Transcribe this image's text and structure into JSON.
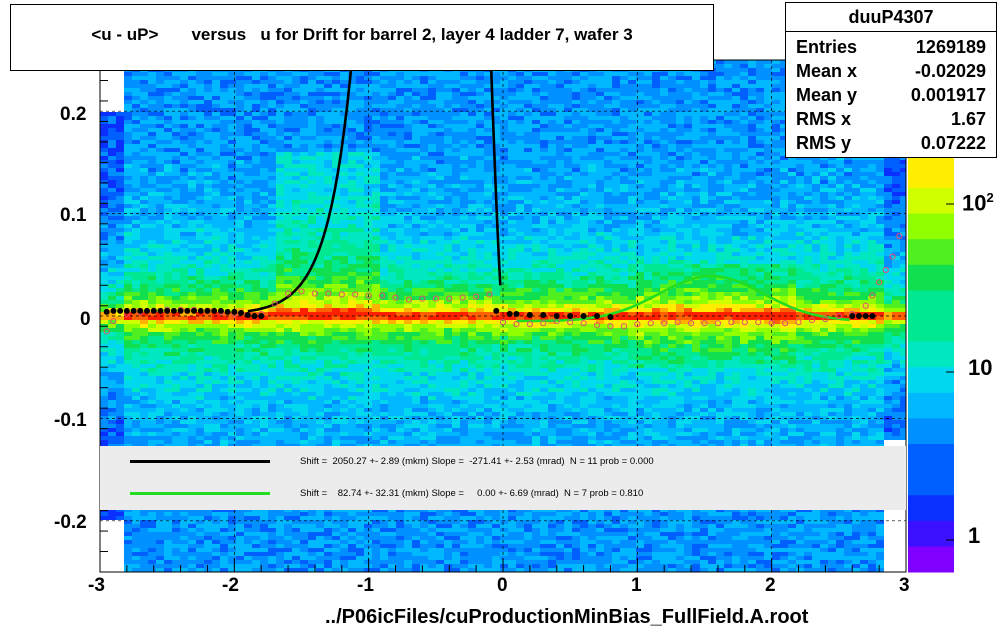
{
  "title": "<u - uP>       versus   u for Drift for barrel 2, layer 4 ladder 7, wafer 3",
  "stats": {
    "name": "duuP4307",
    "rows": [
      {
        "key": "Entries",
        "value": "1269189"
      },
      {
        "key": "Mean x",
        "value": "-0.02029"
      },
      {
        "key": "Mean y",
        "value": "0.001917"
      },
      {
        "key": "RMS x",
        "value": "1.67"
      },
      {
        "key": "RMS y",
        "value": "0.07222"
      }
    ]
  },
  "legend": [
    {
      "color": "#000000",
      "text": "Shift =  2050.27 +- 2.89 (mkm) Slope =  -271.41 +- 2.53 (mrad)  N = 11 prob = 0.000"
    },
    {
      "color": "#22dd22",
      "text": "Shift =    82.74 +- 32.31 (mkm) Slope =     0.00 +- 6.69 (mrad)  N = 7 prob = 0.810"
    }
  ],
  "x_axis_footer": "../P06icFiles/cuProductionMinBias_FullField.A.root",
  "chart_data": {
    "type": "heatmap",
    "xlim": [
      -3,
      3
    ],
    "ylim": [
      -0.25,
      0.25
    ],
    "x_ticks": [
      "-3",
      "-2",
      "-1",
      "0",
      "1",
      "2",
      "3"
    ],
    "y_ticks": [
      "0.2",
      "0.1",
      "0",
      "-0.1",
      "-0.2"
    ],
    "colorbar_ticks": [
      "1",
      "10",
      "10^2"
    ],
    "z_log": true,
    "grid": true,
    "profile_black": {
      "x": [
        -2.95,
        -2.9,
        -2.85,
        -2.8,
        -2.75,
        -2.7,
        -2.65,
        -2.6,
        -2.55,
        -2.5,
        -2.45,
        -2.4,
        -2.35,
        -2.3,
        -2.25,
        -2.2,
        -2.15,
        -2.1,
        -2.05,
        -2.0,
        -1.95,
        -1.9,
        -1.85,
        -1.8,
        -0.05,
        0.05,
        0.1,
        0.2,
        0.3,
        0.4,
        0.5,
        0.6,
        0.7,
        0.8,
        2.6,
        2.65,
        2.7,
        2.75
      ],
      "y": [
        0.004,
        0.005,
        0.005,
        0.005,
        0.005,
        0.005,
        0.005,
        0.005,
        0.005,
        0.005,
        0.005,
        0.005,
        0.005,
        0.005,
        0.005,
        0.005,
        0.005,
        0.005,
        0.004,
        0.004,
        0.003,
        0.001,
        0.0,
        0.0,
        0.005,
        0.002,
        0.002,
        0.001,
        0.001,
        0.0,
        0.0,
        0.0,
        0.0,
        -0.001,
        0.0,
        0.0,
        0.0,
        0.0
      ]
    },
    "profile_open": {
      "x": [
        -2.95,
        -2.9,
        -2.8,
        -2.7,
        -2.6,
        -2.5,
        -2.4,
        -2.3,
        -2.2,
        -2.1,
        -2.0,
        -1.9,
        -1.8,
        -1.7,
        -1.6,
        -1.5,
        -1.4,
        -1.3,
        -1.2,
        -1.1,
        -1.0,
        -0.9,
        -0.8,
        -0.7,
        -0.6,
        -0.5,
        -0.4,
        -0.3,
        -0.2,
        -0.1,
        0.0,
        0.1,
        0.2,
        0.3,
        0.4,
        0.5,
        0.6,
        0.7,
        0.8,
        0.9,
        1.0,
        1.1,
        1.2,
        1.3,
        1.4,
        1.5,
        1.6,
        1.7,
        1.8,
        1.9,
        2.0,
        2.1,
        2.2,
        2.3,
        2.4,
        2.5,
        2.6,
        2.7,
        2.75,
        2.8,
        2.85,
        2.9,
        2.95
      ],
      "y": [
        -0.015,
        -0.005,
        0.002,
        0.004,
        0.005,
        0.006,
        0.006,
        0.006,
        0.005,
        0.004,
        0.002,
        0.001,
        0.002,
        0.012,
        0.022,
        0.024,
        0.022,
        0.022,
        0.021,
        0.021,
        0.02,
        0.02,
        0.018,
        0.016,
        0.017,
        0.017,
        0.017,
        0.018,
        0.019,
        0.021,
        -0.006,
        -0.008,
        -0.008,
        -0.007,
        -0.005,
        -0.006,
        -0.007,
        -0.009,
        -0.01,
        -0.01,
        -0.008,
        -0.007,
        -0.007,
        -0.006,
        -0.007,
        -0.007,
        -0.007,
        -0.006,
        -0.006,
        -0.006,
        -0.007,
        -0.007,
        -0.006,
        -0.004,
        -0.003,
        0.0,
        0.002,
        0.01,
        0.02,
        0.033,
        0.045,
        0.058,
        0.078
      ]
    },
    "fit_black": {
      "shift_mkm": 2050.27,
      "slope_mrad": -271.41
    },
    "fit_green": {
      "shift_mkm": 82.74,
      "slope_mrad": 0.0
    }
  }
}
